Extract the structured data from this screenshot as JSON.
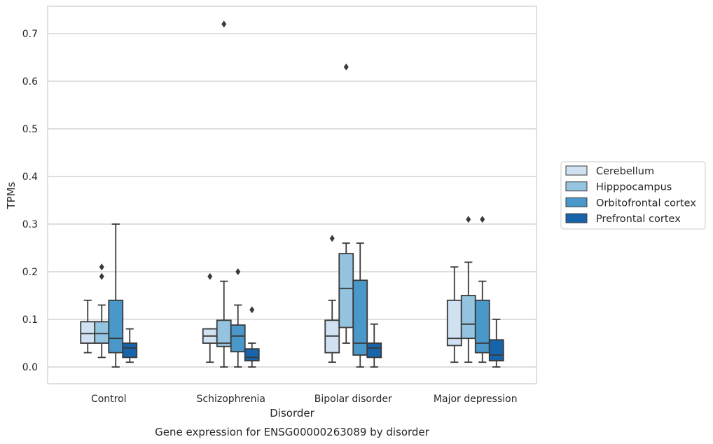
{
  "chart_data": {
    "type": "box",
    "title": "",
    "caption": "Gene expression for ENSG00000263089 by disorder",
    "xlabel": "Disorder",
    "ylabel": "TPMs",
    "categories": [
      "Control",
      "Schizophrenia",
      "Bipolar disorder",
      "Major depression"
    ],
    "ylim": [
      -0.035,
      0.76
    ],
    "yticks": [
      0.0,
      0.1,
      0.2,
      0.3,
      0.4,
      0.5,
      0.6,
      0.7
    ],
    "ytick_labels": [
      "0.0",
      "0.1",
      "0.2",
      "0.3",
      "0.4",
      "0.5",
      "0.6",
      "0.7"
    ],
    "grid": "horizontal",
    "legend_position": "right",
    "series": [
      {
        "name": "Cerebellum",
        "color": "#d0e1f2",
        "boxes": [
          {
            "whisker_low": 0.03,
            "q1": 0.05,
            "median": 0.07,
            "q3": 0.095,
            "whisker_high": 0.14,
            "outliers": []
          },
          {
            "whisker_low": 0.01,
            "q1": 0.05,
            "median": 0.065,
            "q3": 0.08,
            "whisker_high": 0.08,
            "outliers": [
              0.19
            ]
          },
          {
            "whisker_low": 0.01,
            "q1": 0.03,
            "median": 0.065,
            "q3": 0.098,
            "whisker_high": 0.14,
            "outliers": [
              0.27
            ]
          },
          {
            "whisker_low": 0.01,
            "q1": 0.045,
            "median": 0.06,
            "q3": 0.14,
            "whisker_high": 0.21,
            "outliers": []
          }
        ]
      },
      {
        "name": "Hipppocampus",
        "color": "#94c4df",
        "boxes": [
          {
            "whisker_low": 0.02,
            "q1": 0.05,
            "median": 0.07,
            "q3": 0.095,
            "whisker_high": 0.13,
            "outliers": [
              0.19,
              0.21
            ]
          },
          {
            "whisker_low": 0.0,
            "q1": 0.043,
            "median": 0.05,
            "q3": 0.098,
            "whisker_high": 0.18,
            "outliers": [
              0.72
            ]
          },
          {
            "whisker_low": 0.05,
            "q1": 0.083,
            "median": 0.165,
            "q3": 0.238,
            "whisker_high": 0.26,
            "outliers": [
              0.63
            ]
          },
          {
            "whisker_low": 0.01,
            "q1": 0.06,
            "median": 0.09,
            "q3": 0.15,
            "whisker_high": 0.22,
            "outliers": [
              0.31
            ]
          }
        ]
      },
      {
        "name": "Orbitofrontal cortex",
        "color": "#4a98c9",
        "boxes": [
          {
            "whisker_low": 0.0,
            "q1": 0.03,
            "median": 0.06,
            "q3": 0.14,
            "whisker_high": 0.3,
            "outliers": []
          },
          {
            "whisker_low": 0.0,
            "q1": 0.032,
            "median": 0.065,
            "q3": 0.088,
            "whisker_high": 0.13,
            "outliers": [
              0.2
            ]
          },
          {
            "whisker_low": 0.0,
            "q1": 0.025,
            "median": 0.05,
            "q3": 0.182,
            "whisker_high": 0.26,
            "outliers": []
          },
          {
            "whisker_low": 0.01,
            "q1": 0.03,
            "median": 0.05,
            "q3": 0.14,
            "whisker_high": 0.18,
            "outliers": [
              0.31
            ]
          }
        ]
      },
      {
        "name": "Prefrontal cortex",
        "color": "#1764ab",
        "boxes": [
          {
            "whisker_low": 0.01,
            "q1": 0.02,
            "median": 0.04,
            "q3": 0.05,
            "whisker_high": 0.08,
            "outliers": []
          },
          {
            "whisker_low": 0.0,
            "q1": 0.013,
            "median": 0.02,
            "q3": 0.038,
            "whisker_high": 0.05,
            "outliers": [
              0.12
            ]
          },
          {
            "whisker_low": 0.0,
            "q1": 0.02,
            "median": 0.04,
            "q3": 0.05,
            "whisker_high": 0.09,
            "outliers": []
          },
          {
            "whisker_low": 0.0,
            "q1": 0.013,
            "median": 0.025,
            "q3": 0.057,
            "whisker_high": 0.1,
            "outliers": []
          }
        ]
      }
    ]
  }
}
